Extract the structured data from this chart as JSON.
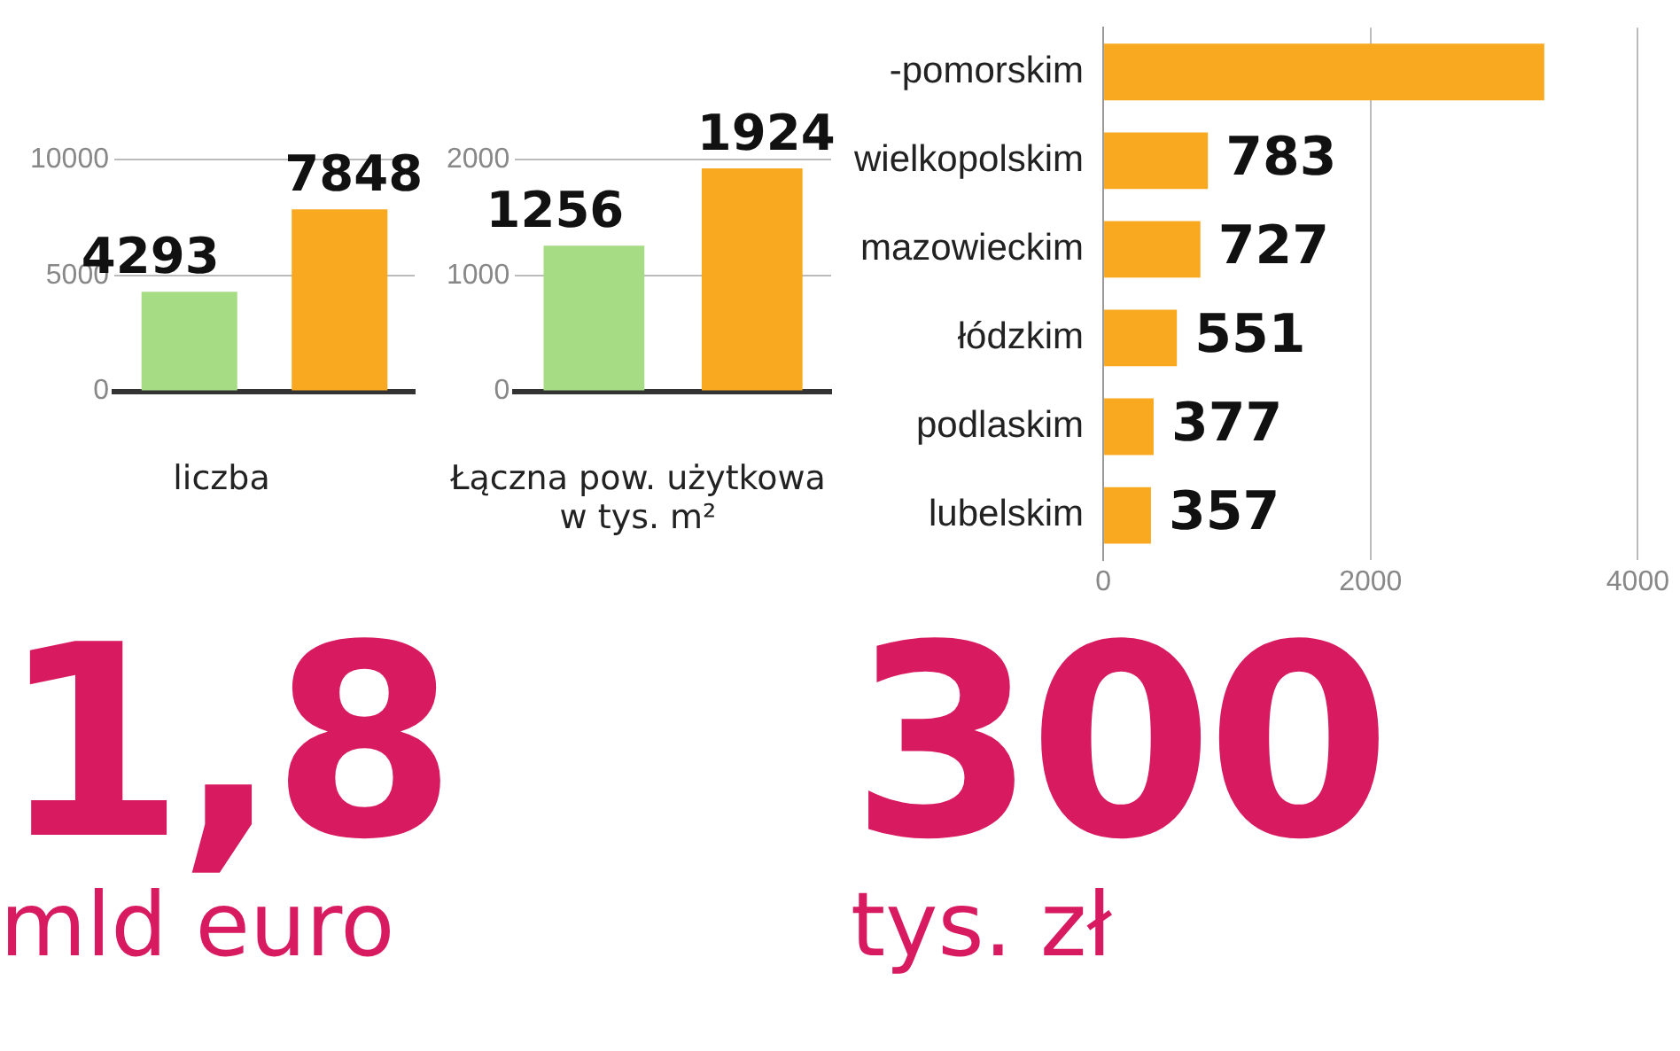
{
  "chart_data": [
    {
      "type": "bar",
      "xlabel": "liczba",
      "categories": [
        null,
        null
      ],
      "values": [
        4293,
        7848
      ],
      "colors": [
        "#a6dc84",
        "#f9a91f"
      ],
      "ylim": [
        0,
        10000
      ],
      "yticks": [
        0,
        5000,
        10000
      ],
      "grid": "y",
      "data_labels": true
    },
    {
      "type": "bar",
      "xlabel": "Łączna pow. użytkowa w tys. m²",
      "categories": [
        null,
        null
      ],
      "values": [
        1256,
        1924
      ],
      "colors": [
        "#a6dc84",
        "#f9a91f"
      ],
      "ylim": [
        0,
        2000
      ],
      "yticks": [
        0,
        1000,
        2000
      ],
      "grid": "y",
      "data_labels": true
    },
    {
      "type": "bar",
      "orientation": "horizontal",
      "categories": [
        "-pomorskim",
        "wielkopolskim",
        "mazowieckim",
        "łódzkim",
        "podlaskim",
        "lubelskim"
      ],
      "values": [
        3300,
        783,
        727,
        551,
        377,
        357
      ],
      "value_labels": [
        null,
        "783",
        "727",
        "551",
        "377",
        "357"
      ],
      "color": "#f9a91f",
      "xlim": [
        0,
        4000
      ],
      "xticks": [
        0,
        2000,
        4000
      ],
      "grid": "x"
    },
    {
      "type": "other",
      "annotations": [
        "1,8",
        "mld euro"
      ]
    },
    {
      "type": "other",
      "annotations": [
        "300",
        "tys. zł"
      ]
    }
  ]
}
